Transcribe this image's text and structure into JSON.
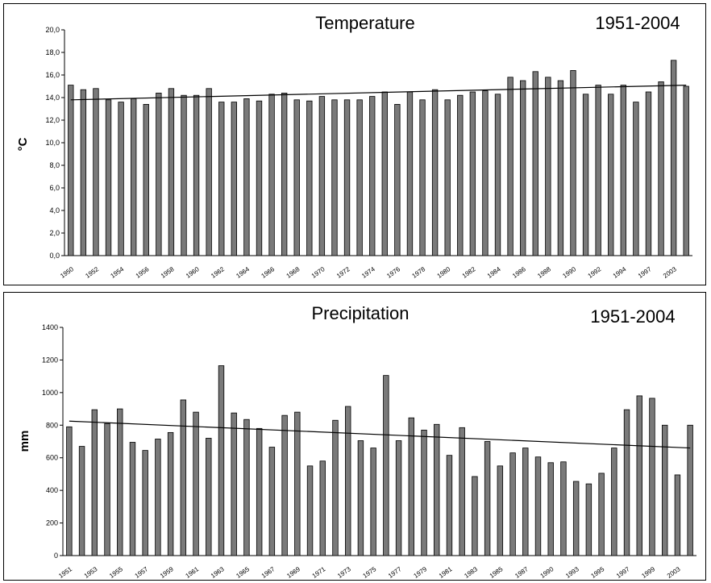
{
  "chart_data": [
    {
      "type": "bar",
      "title": "Temperature",
      "period": "1951-2004",
      "ylabel": "°C",
      "xlabel": "",
      "ylim": [
        0,
        20
      ],
      "ytick_labels": [
        "0,0",
        "2,0",
        "4,0",
        "6,0",
        "8,0",
        "10,0",
        "12,0",
        "14,0",
        "16,0",
        "18,0",
        "20,0"
      ],
      "x_tick_labels": [
        "1950",
        "1952",
        "1954",
        "1956",
        "1958",
        "1960",
        "1962",
        "1964",
        "1966",
        "1968",
        "1970",
        "1972",
        "1974",
        "1976",
        "1978",
        "1980",
        "1982",
        "1984",
        "1986",
        "1988",
        "1990",
        "1992",
        "1994",
        "1997",
        "2003"
      ],
      "values": [
        15.1,
        14.7,
        14.8,
        13.8,
        13.6,
        13.9,
        13.4,
        14.4,
        14.8,
        14.2,
        14.2,
        14.8,
        13.6,
        13.6,
        13.9,
        13.7,
        14.3,
        14.4,
        13.8,
        13.7,
        14.1,
        13.8,
        13.8,
        13.8,
        14.1,
        14.5,
        13.4,
        14.5,
        13.8,
        14.7,
        13.8,
        14.2,
        14.5,
        14.6,
        14.3,
        15.8,
        15.5,
        16.3,
        15.8,
        15.5,
        16.4,
        14.3,
        15.1,
        14.3,
        15.1,
        13.6,
        14.5,
        15.4,
        17.3,
        15.0
      ],
      "trend": [
        13.8,
        15.1
      ],
      "grid": false
    },
    {
      "type": "bar",
      "title": "Precipitation",
      "period": "1951-2004",
      "ylabel": "mm",
      "xlabel": "",
      "ylim": [
        0,
        1400
      ],
      "ytick_labels": [
        "0",
        "200",
        "400",
        "600",
        "800",
        "1000",
        "1200",
        "1400"
      ],
      "x_tick_labels": [
        "1951",
        "1953",
        "1955",
        "1957",
        "1959",
        "1961",
        "1963",
        "1965",
        "1967",
        "1969",
        "1971",
        "1973",
        "1975",
        "1977",
        "1979",
        "1981",
        "1983",
        "1985",
        "1987",
        "1990",
        "1993",
        "1995",
        "1997",
        "1999",
        "2003"
      ],
      "values": [
        790,
        670,
        895,
        810,
        900,
        695,
        645,
        715,
        755,
        955,
        880,
        720,
        1165,
        875,
        835,
        780,
        665,
        860,
        880,
        550,
        580,
        830,
        915,
        705,
        660,
        1105,
        705,
        845,
        770,
        805,
        615,
        785,
        485,
        700,
        550,
        630,
        660,
        605,
        570,
        575,
        455,
        440,
        505,
        660,
        895,
        980,
        965,
        800,
        495,
        800
      ],
      "trend": [
        825,
        660
      ],
      "grid": false
    }
  ]
}
